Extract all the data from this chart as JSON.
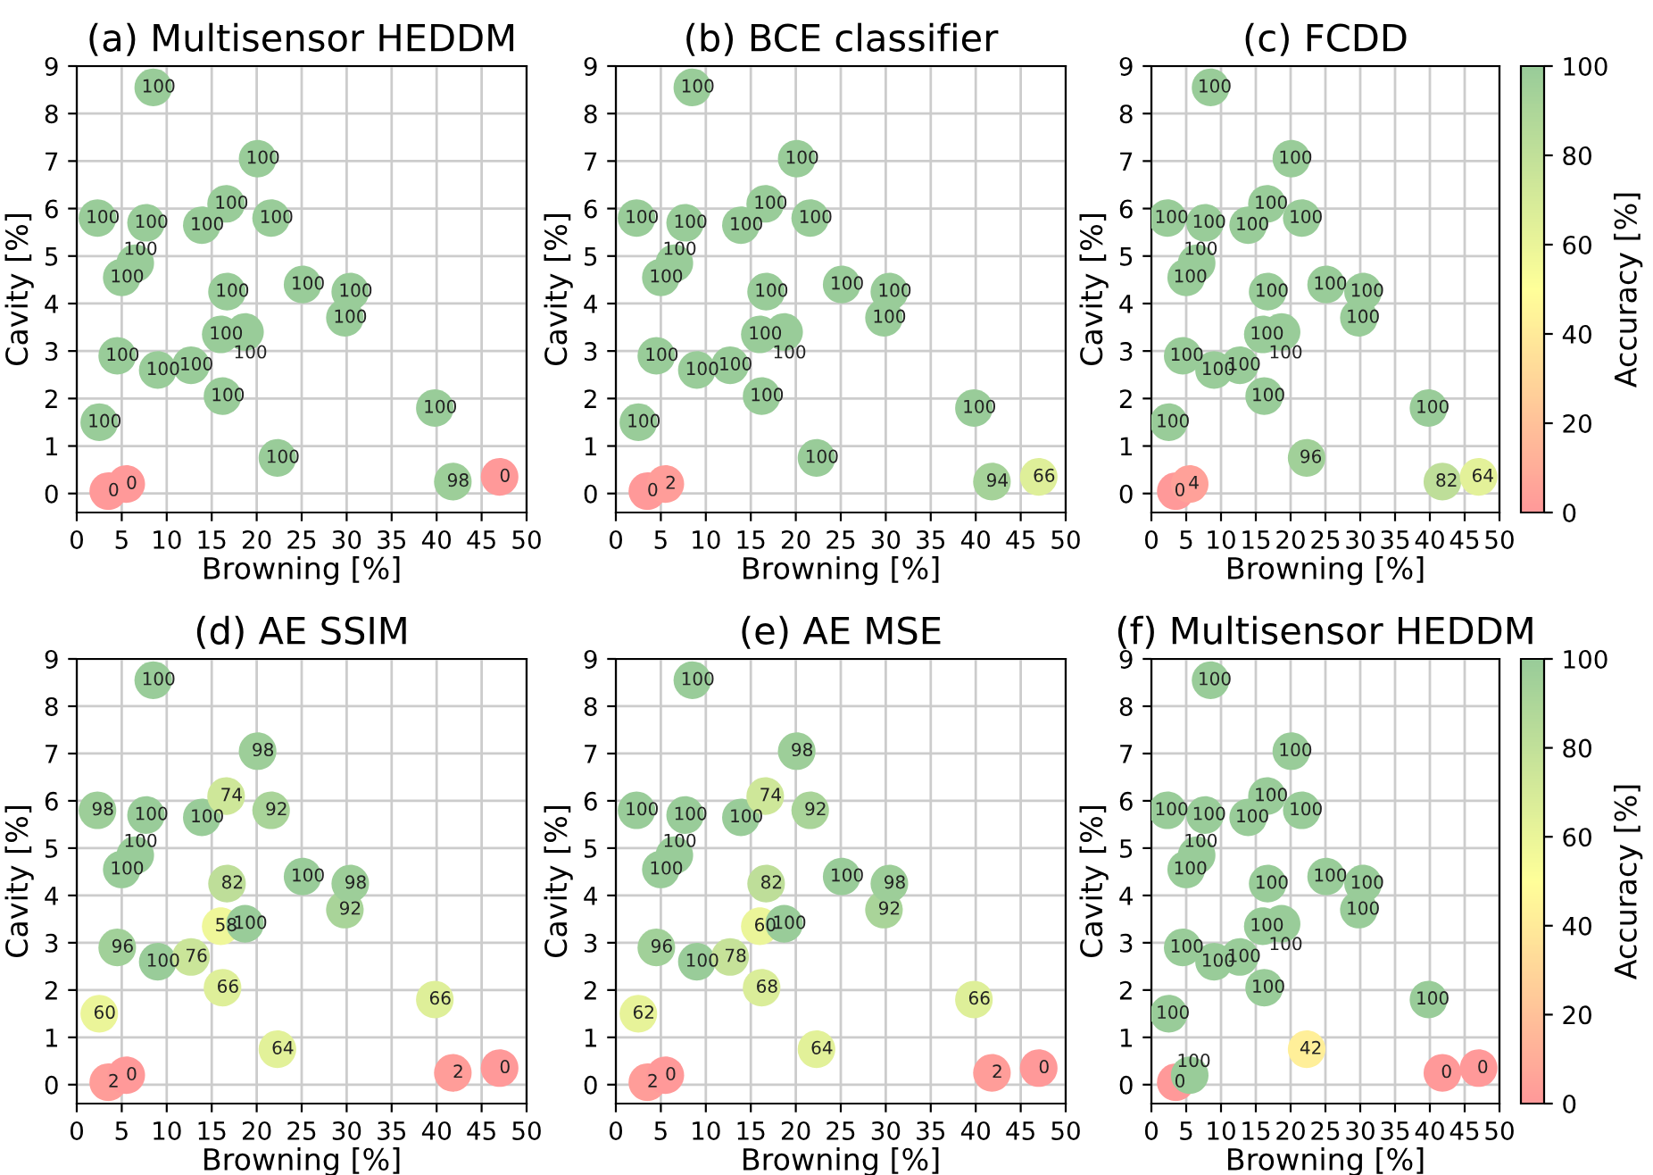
{
  "chart_data": [
    {
      "type": "scatter",
      "title": "(a) Multisensor HEDDM",
      "xlabel": "Browning [%]",
      "ylabel": "Cavity [%]",
      "xlim": [
        0,
        50
      ],
      "ylim": [
        -0.4,
        9
      ],
      "xticks": [
        0,
        5,
        10,
        15,
        20,
        25,
        30,
        35,
        40,
        45,
        50
      ],
      "yticks": [
        0,
        1,
        2,
        3,
        4,
        5,
        6,
        7,
        8,
        9
      ],
      "grid": true,
      "marker": "circle",
      "x": [
        3.5,
        5.5,
        2.5,
        4.5,
        5.0,
        6.5,
        2.3,
        7.7,
        8.5,
        9.0,
        12.7,
        13.9,
        16.2,
        16.0,
        18.7,
        16.7,
        16.6,
        20.1,
        21.6,
        22.3,
        25.1,
        29.8,
        30.4,
        39.8,
        41.8,
        47.0
      ],
      "values": [
        0.05,
        0.2,
        1.5,
        2.9,
        4.55,
        4.85,
        5.8,
        5.7,
        8.55,
        2.6,
        2.7,
        5.65,
        2.05,
        3.35,
        3.4,
        4.25,
        6.1,
        7.05,
        5.8,
        0.75,
        4.4,
        3.7,
        4.25,
        1.8,
        0.25,
        0.35
      ],
      "colors": [
        "#ff9999",
        "#ff9999",
        "#99cc99",
        "#99cc99",
        "#99cc99",
        "#99cc99",
        "#99cc99",
        "#99cc99",
        "#99cc99",
        "#99cc99",
        "#99cc99",
        "#99cc99",
        "#99cc99",
        "#99cc99",
        "#99cc99",
        "#99cc99",
        "#99cc99",
        "#99cc99",
        "#99cc99",
        "#99cc99",
        "#99cc99",
        "#99cc99",
        "#99cc99",
        "#99cc99",
        "#9dce99",
        "#ff9999"
      ],
      "annotations": [
        {
          "text": "0",
          "x": 3.5,
          "y": 0.05
        },
        {
          "text": "0",
          "x": 5.5,
          "y": 0.2
        },
        {
          "text": "100",
          "x": 2.5,
          "y": 1.5
        },
        {
          "text": "100",
          "x": 4.5,
          "y": 2.9
        },
        {
          "text": "100",
          "x": 5.0,
          "y": 4.55
        },
        {
          "text": "100",
          "x": 6.5,
          "y": 4.85
        },
        {
          "text": "100",
          "x": 2.3,
          "y": 5.8
        },
        {
          "text": "100",
          "x": 7.7,
          "y": 5.7
        },
        {
          "text": "100",
          "x": 8.5,
          "y": 8.55
        },
        {
          "text": "100",
          "x": 9.0,
          "y": 2.6
        },
        {
          "text": "100",
          "x": 12.7,
          "y": 2.7
        },
        {
          "text": "100",
          "x": 13.9,
          "y": 5.65
        },
        {
          "text": "100",
          "x": 16.2,
          "y": 2.05
        },
        {
          "text": "100",
          "x": 16.0,
          "y": 3.35
        },
        {
          "text": "100",
          "x": 18.7,
          "y": 3.4
        },
        {
          "text": "100",
          "x": 16.7,
          "y": 4.25
        },
        {
          "text": "100",
          "x": 16.6,
          "y": 6.1
        },
        {
          "text": "100",
          "x": 20.1,
          "y": 7.05
        },
        {
          "text": "100",
          "x": 21.6,
          "y": 5.8
        },
        {
          "text": "100",
          "x": 22.3,
          "y": 0.75
        },
        {
          "text": "100",
          "x": 25.1,
          "y": 4.4
        },
        {
          "text": "100",
          "x": 29.8,
          "y": 3.7
        },
        {
          "text": "100",
          "x": 30.4,
          "y": 4.25
        },
        {
          "text": "100",
          "x": 39.8,
          "y": 1.8
        },
        {
          "text": "98",
          "x": 41.8,
          "y": 0.25
        },
        {
          "text": "0",
          "x": 47.0,
          "y": 0.35
        }
      ]
    },
    {
      "type": "scatter",
      "title": "(b) BCE classifier",
      "xlabel": "Browning [%]",
      "ylabel": "Cavity [%]",
      "xlim": [
        0,
        50
      ],
      "ylim": [
        -0.4,
        9
      ],
      "xticks": [
        0,
        5,
        10,
        15,
        20,
        25,
        30,
        35,
        40,
        45,
        50
      ],
      "yticks": [
        0,
        1,
        2,
        3,
        4,
        5,
        6,
        7,
        8,
        9
      ],
      "grid": true,
      "marker": "circle",
      "x": [
        3.5,
        5.5,
        2.5,
        4.5,
        5.0,
        6.5,
        2.3,
        7.7,
        8.5,
        9.0,
        12.7,
        13.9,
        16.2,
        16.0,
        18.7,
        16.7,
        16.6,
        20.1,
        21.6,
        22.3,
        25.1,
        29.8,
        30.4,
        39.8,
        41.8,
        47.0
      ],
      "values": [
        0.05,
        0.2,
        1.5,
        2.9,
        4.55,
        4.85,
        5.8,
        5.7,
        8.55,
        2.6,
        2.7,
        5.65,
        2.05,
        3.35,
        3.4,
        4.25,
        6.1,
        7.05,
        5.8,
        0.75,
        4.4,
        3.7,
        4.25,
        1.8,
        0.25,
        0.35
      ],
      "colors": [
        "#ff9999",
        "#ff9d99",
        "#99cc99",
        "#99cc99",
        "#99cc99",
        "#99cc99",
        "#99cc99",
        "#99cc99",
        "#99cc99",
        "#99cc99",
        "#99cc99",
        "#99cc99",
        "#99cc99",
        "#99cc99",
        "#99cc99",
        "#99cc99",
        "#99cc99",
        "#99cc99",
        "#99cc99",
        "#99cc99",
        "#99cc99",
        "#99cc99",
        "#99cc99",
        "#99cc99",
        "#a5d299",
        "#deef99"
      ],
      "annotations": [
        {
          "text": "0",
          "x": 3.5,
          "y": 0.05
        },
        {
          "text": "2",
          "x": 5.5,
          "y": 0.2
        },
        {
          "text": "100",
          "x": 2.5,
          "y": 1.5
        },
        {
          "text": "100",
          "x": 4.5,
          "y": 2.9
        },
        {
          "text": "100",
          "x": 5.0,
          "y": 4.55
        },
        {
          "text": "100",
          "x": 6.5,
          "y": 4.85
        },
        {
          "text": "100",
          "x": 2.3,
          "y": 5.8
        },
        {
          "text": "100",
          "x": 7.7,
          "y": 5.7
        },
        {
          "text": "100",
          "x": 8.5,
          "y": 8.55
        },
        {
          "text": "100",
          "x": 9.0,
          "y": 2.6
        },
        {
          "text": "100",
          "x": 12.7,
          "y": 2.7
        },
        {
          "text": "100",
          "x": 13.9,
          "y": 5.65
        },
        {
          "text": "100",
          "x": 16.2,
          "y": 2.05
        },
        {
          "text": "100",
          "x": 16.0,
          "y": 3.35
        },
        {
          "text": "100",
          "x": 18.7,
          "y": 3.4
        },
        {
          "text": "100",
          "x": 16.7,
          "y": 4.25
        },
        {
          "text": "100",
          "x": 16.6,
          "y": 6.1
        },
        {
          "text": "100",
          "x": 20.1,
          "y": 7.05
        },
        {
          "text": "100",
          "x": 21.6,
          "y": 5.8
        },
        {
          "text": "100",
          "x": 22.3,
          "y": 0.75
        },
        {
          "text": "100",
          "x": 25.1,
          "y": 4.4
        },
        {
          "text": "100",
          "x": 29.8,
          "y": 3.7
        },
        {
          "text": "100",
          "x": 30.4,
          "y": 4.25
        },
        {
          "text": "100",
          "x": 39.8,
          "y": 1.8
        },
        {
          "text": "94",
          "x": 41.8,
          "y": 0.25
        },
        {
          "text": "66",
          "x": 47.0,
          "y": 0.35
        }
      ]
    },
    {
      "type": "scatter",
      "title": "(c) FCDD",
      "xlabel": "Browning [%]",
      "ylabel": "Cavity [%]",
      "clabel": "Accuracy [%]",
      "xlim": [
        0,
        50
      ],
      "ylim": [
        -0.4,
        9
      ],
      "xticks": [
        0,
        5,
        10,
        15,
        20,
        25,
        30,
        35,
        40,
        45,
        50
      ],
      "yticks": [
        0,
        1,
        2,
        3,
        4,
        5,
        6,
        7,
        8,
        9
      ],
      "grid": true,
      "marker": "circle",
      "clim": [
        0,
        100
      ],
      "cticks": [
        0,
        20,
        40,
        60,
        80,
        100
      ],
      "x": [
        3.5,
        5.5,
        2.5,
        4.5,
        5.0,
        6.5,
        2.3,
        7.7,
        8.5,
        9.0,
        12.7,
        13.9,
        16.2,
        16.0,
        18.7,
        16.7,
        16.6,
        20.1,
        21.6,
        22.3,
        25.1,
        29.8,
        30.4,
        39.8,
        41.8,
        47.0
      ],
      "values": [
        0.05,
        0.2,
        1.5,
        2.9,
        4.55,
        4.85,
        5.8,
        5.7,
        8.55,
        2.6,
        2.7,
        5.65,
        2.05,
        3.35,
        3.4,
        4.25,
        6.1,
        7.05,
        5.8,
        0.75,
        4.4,
        3.7,
        4.25,
        1.8,
        0.25,
        0.35
      ],
      "cvalues": [
        0,
        4,
        100,
        100,
        100,
        100,
        100,
        100,
        100,
        100,
        100,
        100,
        100,
        100,
        100,
        100,
        100,
        100,
        100,
        96,
        100,
        100,
        100,
        100,
        82,
        64
      ],
      "annotations": [
        {
          "text": "0",
          "x": 3.5,
          "y": 0.05
        },
        {
          "text": "4",
          "x": 5.5,
          "y": 0.2
        },
        {
          "text": "100",
          "x": 2.5,
          "y": 1.5
        },
        {
          "text": "100",
          "x": 4.5,
          "y": 2.9
        },
        {
          "text": "100",
          "x": 5.0,
          "y": 4.55
        },
        {
          "text": "100",
          "x": 6.5,
          "y": 4.85
        },
        {
          "text": "100",
          "x": 2.3,
          "y": 5.8
        },
        {
          "text": "100",
          "x": 7.7,
          "y": 5.7
        },
        {
          "text": "100",
          "x": 8.5,
          "y": 8.55
        },
        {
          "text": "100",
          "x": 9.0,
          "y": 2.6
        },
        {
          "text": "100",
          "x": 12.7,
          "y": 2.7
        },
        {
          "text": "100",
          "x": 13.9,
          "y": 5.65
        },
        {
          "text": "100",
          "x": 16.2,
          "y": 2.05
        },
        {
          "text": "100",
          "x": 16.0,
          "y": 3.35
        },
        {
          "text": "100",
          "x": 18.7,
          "y": 3.4
        },
        {
          "text": "100",
          "x": 16.7,
          "y": 4.25
        },
        {
          "text": "100",
          "x": 16.6,
          "y": 6.1
        },
        {
          "text": "100",
          "x": 20.1,
          "y": 7.05
        },
        {
          "text": "100",
          "x": 21.6,
          "y": 5.8
        },
        {
          "text": "96",
          "x": 22.3,
          "y": 0.75
        },
        {
          "text": "100",
          "x": 25.1,
          "y": 4.4
        },
        {
          "text": "100",
          "x": 29.8,
          "y": 3.7
        },
        {
          "text": "100",
          "x": 30.4,
          "y": 4.25
        },
        {
          "text": "100",
          "x": 39.8,
          "y": 1.8
        },
        {
          "text": "82",
          "x": 41.8,
          "y": 0.25
        },
        {
          "text": "64",
          "x": 47.0,
          "y": 0.35
        }
      ]
    },
    {
      "type": "scatter",
      "title": "(d) AE SSIM",
      "xlabel": "Browning [%]",
      "ylabel": "Cavity [%]",
      "xlim": [
        0,
        50
      ],
      "ylim": [
        -0.4,
        9
      ],
      "xticks": [
        0,
        5,
        10,
        15,
        20,
        25,
        30,
        35,
        40,
        45,
        50
      ],
      "yticks": [
        0,
        1,
        2,
        3,
        4,
        5,
        6,
        7,
        8,
        9
      ],
      "grid": true,
      "marker": "circle",
      "x": [
        3.5,
        5.5,
        2.5,
        4.5,
        5.0,
        6.5,
        2.3,
        7.7,
        8.5,
        9.0,
        12.7,
        13.9,
        16.2,
        16.0,
        18.7,
        16.7,
        16.6,
        20.1,
        21.6,
        22.3,
        25.1,
        29.8,
        30.4,
        39.8,
        41.8,
        47.0
      ],
      "values": [
        0.05,
        0.2,
        1.5,
        2.9,
        4.55,
        4.85,
        5.8,
        5.7,
        8.55,
        2.6,
        2.7,
        5.65,
        2.05,
        3.35,
        3.4,
        4.25,
        6.1,
        7.05,
        5.8,
        0.75,
        4.4,
        3.7,
        4.25,
        1.8,
        0.25,
        0.35
      ],
      "colors": [
        "#ff9d99",
        "#ff9999",
        "#ebf599",
        "#a1d099",
        "#99cc99",
        "#99cc99",
        "#9dce99",
        "#99cc99",
        "#99cc99",
        "#99cc99",
        "#cae599",
        "#99cc99",
        "#deef99",
        "#eff799",
        "#99cc99",
        "#bede99",
        "#cee799",
        "#9dce99",
        "#a9d499",
        "#e2f199",
        "#99cc99",
        "#a9d499",
        "#9dce99",
        "#deef99",
        "#ff9d99",
        "#ff9999"
      ],
      "annotations": [
        {
          "text": "2",
          "x": 3.5,
          "y": 0.05
        },
        {
          "text": "0",
          "x": 5.5,
          "y": 0.2
        },
        {
          "text": "60",
          "x": 2.5,
          "y": 1.5
        },
        {
          "text": "96",
          "x": 4.5,
          "y": 2.9
        },
        {
          "text": "100",
          "x": 5.0,
          "y": 4.55
        },
        {
          "text": "100",
          "x": 6.5,
          "y": 4.85
        },
        {
          "text": "98",
          "x": 2.3,
          "y": 5.8
        },
        {
          "text": "100",
          "x": 7.7,
          "y": 5.7
        },
        {
          "text": "100",
          "x": 8.5,
          "y": 8.55
        },
        {
          "text": "100",
          "x": 9.0,
          "y": 2.6
        },
        {
          "text": "76",
          "x": 12.7,
          "y": 2.7
        },
        {
          "text": "100",
          "x": 13.9,
          "y": 5.65
        },
        {
          "text": "66",
          "x": 16.2,
          "y": 2.05
        },
        {
          "text": "58",
          "x": 16.0,
          "y": 3.35
        },
        {
          "text": "100",
          "x": 18.7,
          "y": 3.4
        },
        {
          "text": "82",
          "x": 16.7,
          "y": 4.25
        },
        {
          "text": "74",
          "x": 16.6,
          "y": 6.1
        },
        {
          "text": "98",
          "x": 20.1,
          "y": 7.05
        },
        {
          "text": "92",
          "x": 21.6,
          "y": 5.8
        },
        {
          "text": "64",
          "x": 22.3,
          "y": 0.75
        },
        {
          "text": "100",
          "x": 25.1,
          "y": 4.4
        },
        {
          "text": "92",
          "x": 29.8,
          "y": 3.7
        },
        {
          "text": "98",
          "x": 30.4,
          "y": 4.25
        },
        {
          "text": "66",
          "x": 39.8,
          "y": 1.8
        },
        {
          "text": "2",
          "x": 41.8,
          "y": 0.25
        },
        {
          "text": "0",
          "x": 47.0,
          "y": 0.35
        }
      ]
    },
    {
      "type": "scatter",
      "title": "(e) AE MSE",
      "xlabel": "Browning [%]",
      "ylabel": "Cavity [%]",
      "xlim": [
        0,
        50
      ],
      "ylim": [
        -0.4,
        9
      ],
      "xticks": [
        0,
        5,
        10,
        15,
        20,
        25,
        30,
        35,
        40,
        45,
        50
      ],
      "yticks": [
        0,
        1,
        2,
        3,
        4,
        5,
        6,
        7,
        8,
        9
      ],
      "grid": true,
      "marker": "circle",
      "x": [
        3.5,
        5.5,
        2.5,
        4.5,
        5.0,
        6.5,
        2.3,
        7.7,
        8.5,
        9.0,
        12.7,
        13.9,
        16.2,
        16.0,
        18.7,
        16.7,
        16.6,
        20.1,
        21.6,
        22.3,
        25.1,
        29.8,
        30.4,
        39.8,
        41.8,
        47.0
      ],
      "values": [
        0.05,
        0.2,
        1.5,
        2.9,
        4.55,
        4.85,
        5.8,
        5.7,
        8.55,
        2.6,
        2.7,
        5.65,
        2.05,
        3.35,
        3.4,
        4.25,
        6.1,
        7.05,
        5.8,
        0.75,
        4.4,
        3.7,
        4.25,
        1.8,
        0.25,
        0.35
      ],
      "colors": [
        "#ff9d99",
        "#ff9999",
        "#e7f399",
        "#a1d099",
        "#99cc99",
        "#99cc99",
        "#99cc99",
        "#99cc99",
        "#99cc99",
        "#99cc99",
        "#c6e299",
        "#99cc99",
        "#daed99",
        "#ebf599",
        "#99cc99",
        "#bede99",
        "#cee799",
        "#9dce99",
        "#a9d499",
        "#e2f199",
        "#99cc99",
        "#a9d499",
        "#9dce99",
        "#deef99",
        "#ff9d99",
        "#ff9999"
      ],
      "annotations": [
        {
          "text": "2",
          "x": 3.5,
          "y": 0.05
        },
        {
          "text": "0",
          "x": 5.5,
          "y": 0.2
        },
        {
          "text": "62",
          "x": 2.5,
          "y": 1.5
        },
        {
          "text": "96",
          "x": 4.5,
          "y": 2.9
        },
        {
          "text": "100",
          "x": 5.0,
          "y": 4.55
        },
        {
          "text": "100",
          "x": 6.5,
          "y": 4.85
        },
        {
          "text": "100",
          "x": 2.3,
          "y": 5.8
        },
        {
          "text": "100",
          "x": 7.7,
          "y": 5.7
        },
        {
          "text": "100",
          "x": 8.5,
          "y": 8.55
        },
        {
          "text": "100",
          "x": 9.0,
          "y": 2.6
        },
        {
          "text": "78",
          "x": 12.7,
          "y": 2.7
        },
        {
          "text": "100",
          "x": 13.9,
          "y": 5.65
        },
        {
          "text": "68",
          "x": 16.2,
          "y": 2.05
        },
        {
          "text": "60",
          "x": 16.0,
          "y": 3.35
        },
        {
          "text": "100",
          "x": 18.7,
          "y": 3.4
        },
        {
          "text": "82",
          "x": 16.7,
          "y": 4.25
        },
        {
          "text": "74",
          "x": 16.6,
          "y": 6.1
        },
        {
          "text": "98",
          "x": 20.1,
          "y": 7.05
        },
        {
          "text": "92",
          "x": 21.6,
          "y": 5.8
        },
        {
          "text": "64",
          "x": 22.3,
          "y": 0.75
        },
        {
          "text": "100",
          "x": 25.1,
          "y": 4.4
        },
        {
          "text": "92",
          "x": 29.8,
          "y": 3.7
        },
        {
          "text": "98",
          "x": 30.4,
          "y": 4.25
        },
        {
          "text": "66",
          "x": 39.8,
          "y": 1.8
        },
        {
          "text": "2",
          "x": 41.8,
          "y": 0.25
        },
        {
          "text": "0",
          "x": 47.0,
          "y": 0.35
        }
      ]
    },
    {
      "type": "scatter",
      "title": "(f) Multisensor HEDDM",
      "xlabel": "Browning [%]",
      "ylabel": "Cavity [%]",
      "clabel": "Accuracy [%]",
      "xlim": [
        0,
        50
      ],
      "ylim": [
        -0.4,
        9
      ],
      "xticks": [
        0,
        5,
        10,
        15,
        20,
        25,
        30,
        35,
        40,
        45,
        50
      ],
      "yticks": [
        0,
        1,
        2,
        3,
        4,
        5,
        6,
        7,
        8,
        9
      ],
      "grid": true,
      "marker": "circle",
      "clim": [
        0,
        100
      ],
      "cticks": [
        0,
        20,
        40,
        60,
        80,
        100
      ],
      "x": [
        3.5,
        5.5,
        2.5,
        4.5,
        5.0,
        6.5,
        2.3,
        7.7,
        8.5,
        9.0,
        12.7,
        13.9,
        16.2,
        16.0,
        18.7,
        16.7,
        16.6,
        20.1,
        21.6,
        22.3,
        25.1,
        29.8,
        30.4,
        39.8,
        41.8,
        47.0
      ],
      "values": [
        0.05,
        0.2,
        1.5,
        2.9,
        4.55,
        4.85,
        5.8,
        5.7,
        8.55,
        2.6,
        2.7,
        5.65,
        2.05,
        3.35,
        3.4,
        4.25,
        6.1,
        7.05,
        5.8,
        0.75,
        4.4,
        3.7,
        4.25,
        1.8,
        0.25,
        0.35
      ],
      "cvalues": [
        0,
        100,
        100,
        100,
        100,
        100,
        100,
        100,
        100,
        100,
        100,
        100,
        100,
        100,
        100,
        100,
        100,
        100,
        100,
        42,
        100,
        100,
        100,
        100,
        0,
        0
      ],
      "annotations": [
        {
          "text": "0",
          "x": 3.5,
          "y": 0.05
        },
        {
          "text": "100",
          "x": 5.5,
          "y": 0.2
        },
        {
          "text": "100",
          "x": 2.5,
          "y": 1.5
        },
        {
          "text": "100",
          "x": 4.5,
          "y": 2.9
        },
        {
          "text": "100",
          "x": 5.0,
          "y": 4.55
        },
        {
          "text": "100",
          "x": 6.5,
          "y": 4.85
        },
        {
          "text": "100",
          "x": 2.3,
          "y": 5.8
        },
        {
          "text": "100",
          "x": 7.7,
          "y": 5.7
        },
        {
          "text": "100",
          "x": 8.5,
          "y": 8.55
        },
        {
          "text": "100",
          "x": 9.0,
          "y": 2.6
        },
        {
          "text": "100",
          "x": 12.7,
          "y": 2.7
        },
        {
          "text": "100",
          "x": 13.9,
          "y": 5.65
        },
        {
          "text": "100",
          "x": 16.2,
          "y": 2.05
        },
        {
          "text": "100",
          "x": 16.0,
          "y": 3.35
        },
        {
          "text": "100",
          "x": 18.7,
          "y": 3.4
        },
        {
          "text": "100",
          "x": 16.7,
          "y": 4.25
        },
        {
          "text": "100",
          "x": 16.6,
          "y": 6.1
        },
        {
          "text": "100",
          "x": 20.1,
          "y": 7.05
        },
        {
          "text": "100",
          "x": 21.6,
          "y": 5.8
        },
        {
          "text": "42",
          "x": 22.3,
          "y": 0.75
        },
        {
          "text": "100",
          "x": 25.1,
          "y": 4.4
        },
        {
          "text": "100",
          "x": 29.8,
          "y": 3.7
        },
        {
          "text": "100",
          "x": 30.4,
          "y": 4.25
        },
        {
          "text": "100",
          "x": 39.8,
          "y": 1.8
        },
        {
          "text": "0",
          "x": 41.8,
          "y": 0.25
        },
        {
          "text": "0",
          "x": 47.0,
          "y": 0.35
        }
      ]
    }
  ]
}
